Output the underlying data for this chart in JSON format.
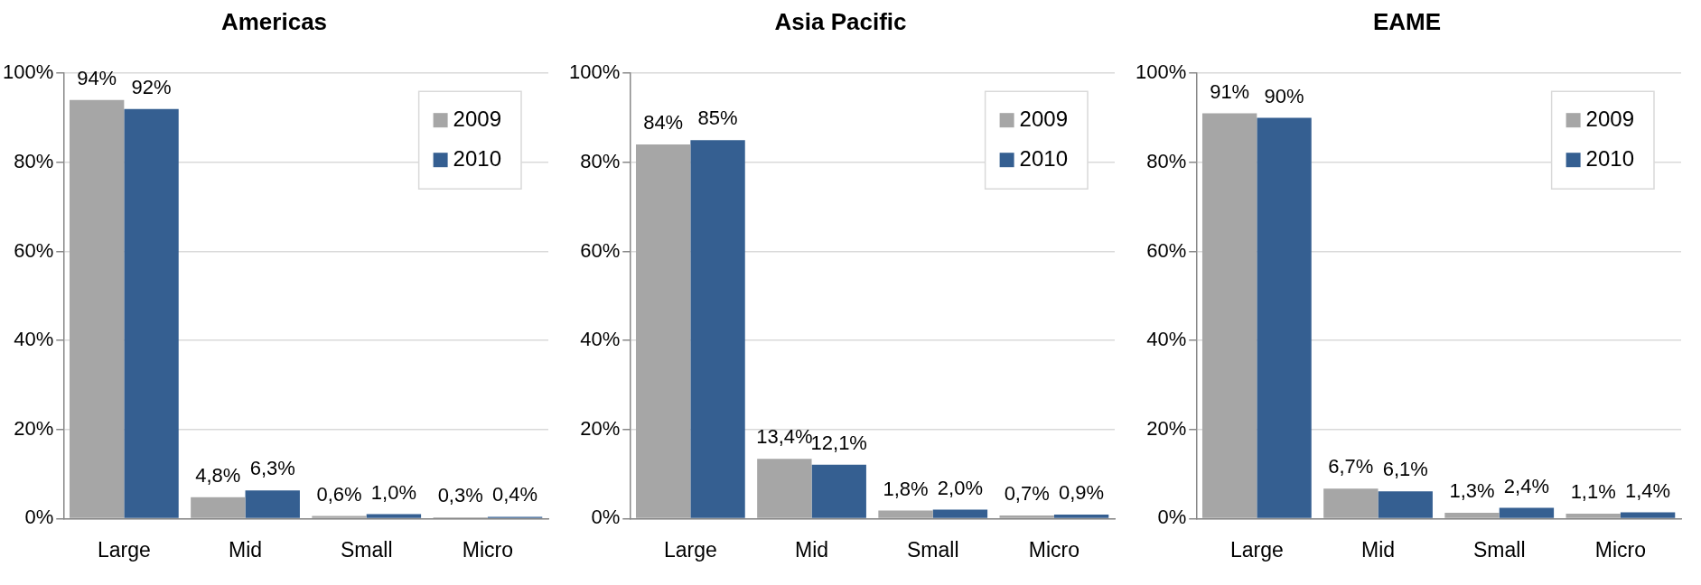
{
  "chart_data": [
    {
      "type": "bar",
      "title": "Americas",
      "categories": [
        "Large",
        "Mid",
        "Small",
        "Micro"
      ],
      "series": [
        {
          "name": "2009",
          "color": "#a6a6a6",
          "values": [
            94,
            4.8,
            0.6,
            0.3
          ],
          "value_labels": [
            "94%",
            "4,8%",
            "0,6%",
            "0,3%"
          ]
        },
        {
          "name": "2010",
          "color": "#355f91",
          "values": [
            92,
            6.3,
            1.0,
            0.4
          ],
          "value_labels": [
            "92%",
            "6,3%",
            "1,0%",
            "0,4%"
          ]
        }
      ],
      "ylim": [
        0,
        100
      ],
      "yticks": [
        {
          "value": 0,
          "label": "0%"
        },
        {
          "value": 20,
          "label": "20%"
        },
        {
          "value": 40,
          "label": "40%"
        },
        {
          "value": 60,
          "label": "60%"
        },
        {
          "value": 80,
          "label": "80%"
        },
        {
          "value": 100,
          "label": "100%"
        }
      ],
      "grid": "y",
      "legend": "top right"
    },
    {
      "type": "bar",
      "title": "Asia Pacific",
      "categories": [
        "Large",
        "Mid",
        "Small",
        "Micro"
      ],
      "series": [
        {
          "name": "2009",
          "color": "#a6a6a6",
          "values": [
            84,
            13.4,
            1.8,
            0.7
          ],
          "value_labels": [
            "84%",
            "13,4%",
            "1,8%",
            "0,7%"
          ]
        },
        {
          "name": "2010",
          "color": "#355f91",
          "values": [
            85,
            12.1,
            2.0,
            0.9
          ],
          "value_labels": [
            "85%",
            "12,1%",
            "2,0%",
            "0,9%"
          ]
        }
      ],
      "ylim": [
        0,
        100
      ],
      "yticks": [
        {
          "value": 0,
          "label": "0%"
        },
        {
          "value": 20,
          "label": "20%"
        },
        {
          "value": 40,
          "label": "40%"
        },
        {
          "value": 60,
          "label": "60%"
        },
        {
          "value": 80,
          "label": "80%"
        },
        {
          "value": 100,
          "label": "100%"
        }
      ],
      "grid": "y",
      "legend": "top right"
    },
    {
      "type": "bar",
      "title": "EAME",
      "categories": [
        "Large",
        "Mid",
        "Small",
        "Micro"
      ],
      "series": [
        {
          "name": "2009",
          "color": "#a6a6a6",
          "values": [
            91,
            6.7,
            1.3,
            1.1
          ],
          "value_labels": [
            "91%",
            "6,7%",
            "1,3%",
            "1,1%"
          ]
        },
        {
          "name": "2010",
          "color": "#355f91",
          "values": [
            90,
            6.1,
            2.4,
            1.4
          ],
          "value_labels": [
            "90%",
            "6,1%",
            "2,4%",
            "1,4%"
          ]
        }
      ],
      "ylim": [
        0,
        100
      ],
      "yticks": [
        {
          "value": 0,
          "label": "0%"
        },
        {
          "value": 20,
          "label": "20%"
        },
        {
          "value": 40,
          "label": "40%"
        },
        {
          "value": 60,
          "label": "60%"
        },
        {
          "value": 80,
          "label": "80%"
        },
        {
          "value": 100,
          "label": "100%"
        }
      ],
      "grid": "y",
      "legend": "top right"
    }
  ]
}
